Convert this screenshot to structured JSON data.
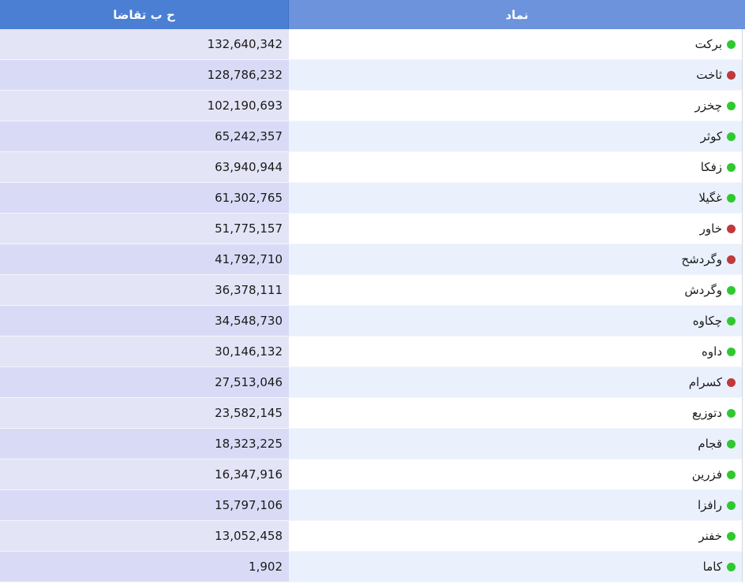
{
  "header": {
    "demand_label": "ح ب تقاضا",
    "symbol_label": "نماد"
  },
  "colors": {
    "up": "#2ec92e",
    "down": "#c0393b",
    "header_left": "#4a7fd4",
    "header_right": "#6c93db"
  },
  "rows": [
    {
      "symbol": "برکت",
      "status": "up",
      "demand": "132,640,342"
    },
    {
      "symbol": "ثاخت",
      "status": "down",
      "demand": "128,786,232"
    },
    {
      "symbol": "چخزر",
      "status": "up",
      "demand": "102,190,693"
    },
    {
      "symbol": "کوثر",
      "status": "up",
      "demand": "65,242,357"
    },
    {
      "symbol": "زفکا",
      "status": "up",
      "demand": "63,940,944"
    },
    {
      "symbol": "غگیلا",
      "status": "up",
      "demand": "61,302,765"
    },
    {
      "symbol": "خاور",
      "status": "down",
      "demand": "51,775,157"
    },
    {
      "symbol": "وگردشح",
      "status": "down",
      "demand": "41,792,710"
    },
    {
      "symbol": "وگردش",
      "status": "up",
      "demand": "36,378,111"
    },
    {
      "symbol": "چکاوه",
      "status": "up",
      "demand": "34,548,730"
    },
    {
      "symbol": "داوه",
      "status": "up",
      "demand": "30,146,132"
    },
    {
      "symbol": "کسرام",
      "status": "down",
      "demand": "27,513,046"
    },
    {
      "symbol": "دتوزیع",
      "status": "up",
      "demand": "23,582,145"
    },
    {
      "symbol": "قجام",
      "status": "up",
      "demand": "18,323,225"
    },
    {
      "symbol": "فزرین",
      "status": "up",
      "demand": "16,347,916"
    },
    {
      "symbol": "رافزا",
      "status": "up",
      "demand": "15,797,106"
    },
    {
      "symbol": "خفنر",
      "status": "up",
      "demand": "13,052,458"
    },
    {
      "symbol": "کاما",
      "status": "up",
      "demand": "1,902"
    }
  ]
}
